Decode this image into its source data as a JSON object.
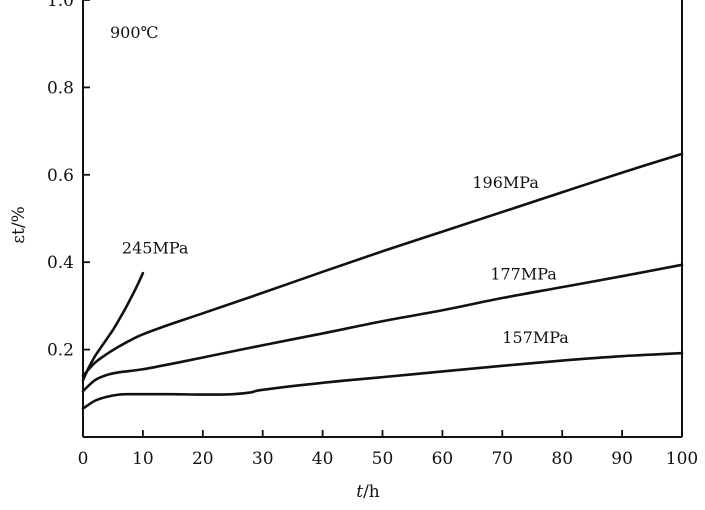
{
  "chart_data": {
    "type": "line",
    "annotation": "900℃",
    "xlabel_italic": "t",
    "xlabel_unit": "/h",
    "ylabel": "εt/%",
    "xlim": [
      0,
      100
    ],
    "ylim": [
      0,
      1.0
    ],
    "x_ticks": [
      "0",
      "10",
      "20",
      "30",
      "40",
      "50",
      "60",
      "70",
      "80",
      "90",
      "100"
    ],
    "y_ticks": [
      {
        "v": 0.2,
        "label": "0.2"
      },
      {
        "v": 0.4,
        "label": "0.4"
      },
      {
        "v": 0.6,
        "label": "0.6"
      },
      {
        "v": 0.8,
        "label": "0.8"
      },
      {
        "v": 1.0,
        "label": "1.0"
      }
    ],
    "series": [
      {
        "name": "245MPa",
        "label_pos": [
          6.5,
          0.42
        ],
        "x": [
          0,
          1,
          2,
          3,
          4,
          5,
          6,
          7,
          8,
          9,
          10
        ],
        "y": [
          0.13,
          0.16,
          0.185,
          0.205,
          0.225,
          0.245,
          0.268,
          0.292,
          0.318,
          0.345,
          0.375
        ]
      },
      {
        "name": "196MPa",
        "label_pos": [
          65,
          0.57
        ],
        "x": [
          0,
          2,
          4,
          6,
          8,
          10,
          15,
          20,
          30,
          40,
          50,
          60,
          70,
          80,
          90,
          100
        ],
        "y": [
          0.14,
          0.17,
          0.19,
          0.207,
          0.222,
          0.235,
          0.26,
          0.283,
          0.33,
          0.378,
          0.425,
          0.47,
          0.515,
          0.56,
          0.605,
          0.648
        ]
      },
      {
        "name": "177MPa",
        "label_pos": [
          68,
          0.36
        ],
        "x": [
          0,
          2,
          4,
          6,
          10,
          15,
          20,
          30,
          40,
          50,
          60,
          70,
          80,
          90,
          100
        ],
        "y": [
          0.105,
          0.13,
          0.142,
          0.148,
          0.155,
          0.168,
          0.182,
          0.21,
          0.237,
          0.265,
          0.29,
          0.318,
          0.343,
          0.368,
          0.394
        ]
      },
      {
        "name": "157MPa",
        "label_pos": [
          70,
          0.215
        ],
        "x": [
          0,
          2,
          4,
          6,
          8,
          10,
          15,
          20,
          25,
          28,
          30,
          40,
          50,
          60,
          70,
          80,
          90,
          100
        ],
        "y": [
          0.065,
          0.083,
          0.092,
          0.097,
          0.098,
          0.098,
          0.098,
          0.097,
          0.098,
          0.102,
          0.108,
          0.124,
          0.137,
          0.15,
          0.163,
          0.175,
          0.185,
          0.192
        ]
      }
    ]
  }
}
